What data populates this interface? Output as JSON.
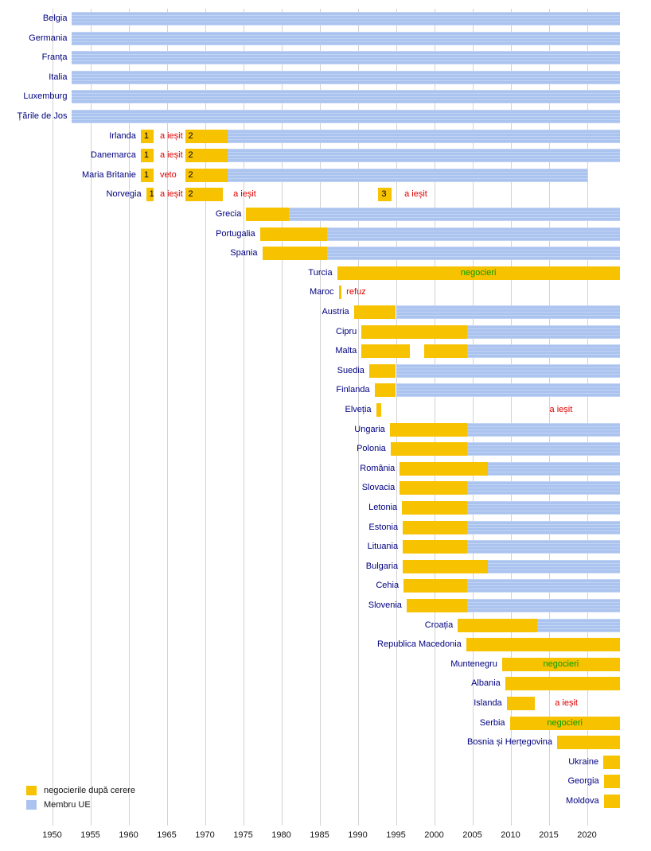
{
  "legend": {
    "application_label": "negocierile după cerere",
    "member_label": "Membru UE"
  },
  "axis": {
    "ticks": [
      "1950",
      "1955",
      "1960",
      "1965",
      "1970",
      "1975",
      "1980",
      "1985",
      "1990",
      "1995",
      "2000",
      "2005",
      "2010",
      "2015",
      "2020"
    ]
  },
  "chart_data": {
    "type": "timeline",
    "x_domain": [
      1950,
      2024.3
    ],
    "x_ticks": [
      1950,
      1955,
      1960,
      1965,
      1970,
      1975,
      1980,
      1985,
      1990,
      1995,
      2000,
      2005,
      2010,
      2015,
      2020
    ],
    "colors": {
      "application": "#F7C200",
      "member": "#ABC3EF",
      "country_label": "#000080",
      "note_negative": "#E10000",
      "note_positive": "#00A000",
      "gridline": "#D2D2D2"
    },
    "legend_position": "bottom-left",
    "grid": true,
    "rows": [
      {
        "label": "Belgia",
        "bars": [
          {
            "type": "member",
            "from": 1952.6,
            "to": 2024.3
          }
        ]
      },
      {
        "label": "Germania",
        "bars": [
          {
            "type": "member",
            "from": 1952.6,
            "to": 2024.3
          }
        ]
      },
      {
        "label": "Franța",
        "bars": [
          {
            "type": "member",
            "from": 1952.6,
            "to": 2024.3
          }
        ]
      },
      {
        "label": "Italia",
        "bars": [
          {
            "type": "member",
            "from": 1952.6,
            "to": 2024.3
          }
        ]
      },
      {
        "label": "Luxemburg",
        "bars": [
          {
            "type": "member",
            "from": 1952.6,
            "to": 2024.3
          }
        ]
      },
      {
        "label": "Țările de Jos",
        "bars": [
          {
            "type": "member",
            "from": 1952.6,
            "to": 2024.3
          }
        ]
      },
      {
        "label": "Irlanda",
        "bars": [
          {
            "type": "application",
            "from": 1961.6,
            "to": 1963.3,
            "text": "1"
          },
          {
            "type": "application",
            "from": 1967.4,
            "to": 1973.0,
            "text": "2"
          },
          {
            "type": "member",
            "from": 1973.0,
            "to": 2024.3
          }
        ],
        "notes": [
          {
            "text": "a ieșit",
            "color": "red",
            "at": 1963.9
          }
        ]
      },
      {
        "label": "Danemarca",
        "bars": [
          {
            "type": "application",
            "from": 1961.6,
            "to": 1963.3,
            "text": "1"
          },
          {
            "type": "application",
            "from": 1967.4,
            "to": 1973.0,
            "text": "2"
          },
          {
            "type": "member",
            "from": 1973.0,
            "to": 2024.3
          }
        ],
        "notes": [
          {
            "text": "a ieșit",
            "color": "red",
            "at": 1963.9
          }
        ]
      },
      {
        "label": "Maria Britanie",
        "bars": [
          {
            "type": "application",
            "from": 1961.6,
            "to": 1963.3,
            "text": "1"
          },
          {
            "type": "application",
            "from": 1967.4,
            "to": 1973.0,
            "text": "2"
          },
          {
            "type": "member",
            "from": 1973.0,
            "to": 2020.1
          }
        ],
        "notes": [
          {
            "text": "veto",
            "color": "red",
            "at": 1963.9
          }
        ]
      },
      {
        "label": "Norvegia",
        "bars": [
          {
            "type": "application",
            "from": 1962.3,
            "to": 1963.3,
            "text": "1"
          },
          {
            "type": "application",
            "from": 1967.4,
            "to": 1972.3,
            "text": "2"
          },
          {
            "type": "application",
            "from": 1992.7,
            "to": 1994.4,
            "text": "3"
          }
        ],
        "notes": [
          {
            "text": "a ieșit",
            "color": "red",
            "at": 1963.9
          },
          {
            "text": "a ieșit",
            "color": "red",
            "at": 1973.5
          },
          {
            "text": "a ieșit",
            "color": "red",
            "at": 1995.9
          }
        ]
      },
      {
        "label": "Grecia",
        "bars": [
          {
            "type": "application",
            "from": 1975.4,
            "to": 1981.0
          },
          {
            "type": "member",
            "from": 1981.0,
            "to": 2024.3
          }
        ]
      },
      {
        "label": "Portugalia",
        "bars": [
          {
            "type": "application",
            "from": 1977.2,
            "to": 1986.0
          },
          {
            "type": "member",
            "from": 1986.0,
            "to": 2024.3
          }
        ]
      },
      {
        "label": "Spania",
        "bars": [
          {
            "type": "application",
            "from": 1977.5,
            "to": 1986.0
          },
          {
            "type": "member",
            "from": 1986.0,
            "to": 2024.3
          }
        ]
      },
      {
        "label": "Turcia",
        "bars": [
          {
            "type": "application",
            "from": 1987.3,
            "to": 2024.3,
            "text": "negocieri",
            "text_color": "green",
            "align": "center"
          }
        ]
      },
      {
        "label": "Maroc",
        "bars": [
          {
            "type": "application",
            "from": 1987.5,
            "to": 1987.9
          }
        ],
        "notes": [
          {
            "text": "refuz",
            "color": "red",
            "at": 1988.3
          }
        ]
      },
      {
        "label": "Austria",
        "bars": [
          {
            "type": "application",
            "from": 1989.5,
            "to": 1995.0
          },
          {
            "type": "member",
            "from": 1995.0,
            "to": 2024.3
          }
        ]
      },
      {
        "label": "Cipru",
        "bars": [
          {
            "type": "application",
            "from": 1990.5,
            "to": 2004.35
          },
          {
            "type": "member",
            "from": 2004.35,
            "to": 2024.3
          }
        ]
      },
      {
        "label": "Malta",
        "bars": [
          {
            "type": "application",
            "from": 1990.5,
            "to": 1996.8
          },
          {
            "type": "application",
            "from": 1998.7,
            "to": 2004.35
          },
          {
            "type": "member",
            "from": 2004.35,
            "to": 2024.3
          }
        ]
      },
      {
        "label": "Suedia",
        "bars": [
          {
            "type": "application",
            "from": 1991.5,
            "to": 1995.0
          },
          {
            "type": "member",
            "from": 1995.0,
            "to": 2024.3
          }
        ]
      },
      {
        "label": "Finlanda",
        "bars": [
          {
            "type": "application",
            "from": 1992.2,
            "to": 1995.0
          },
          {
            "type": "member",
            "from": 1995.0,
            "to": 2024.3
          }
        ]
      },
      {
        "label": "Elveția",
        "bars": [
          {
            "type": "application",
            "from": 1992.4,
            "to": 1993.1
          }
        ],
        "notes": [
          {
            "text": "a ieșit",
            "color": "red",
            "at": 2014.9
          }
        ]
      },
      {
        "label": "Ungaria",
        "bars": [
          {
            "type": "application",
            "from": 1994.2,
            "to": 2004.35
          },
          {
            "type": "member",
            "from": 2004.35,
            "to": 2024.3
          }
        ]
      },
      {
        "label": "Polonia",
        "bars": [
          {
            "type": "application",
            "from": 1994.3,
            "to": 2004.35
          },
          {
            "type": "member",
            "from": 2004.35,
            "to": 2024.3
          }
        ]
      },
      {
        "label": "România",
        "bars": [
          {
            "type": "application",
            "from": 1995.5,
            "to": 2007.0
          },
          {
            "type": "member",
            "from": 2007.0,
            "to": 2024.3
          }
        ]
      },
      {
        "label": "Slovacia",
        "bars": [
          {
            "type": "application",
            "from": 1995.5,
            "to": 2004.35
          },
          {
            "type": "member",
            "from": 2004.35,
            "to": 2024.3
          }
        ]
      },
      {
        "label": "Letonia",
        "bars": [
          {
            "type": "application",
            "from": 1995.8,
            "to": 2004.35
          },
          {
            "type": "member",
            "from": 2004.35,
            "to": 2024.3
          }
        ]
      },
      {
        "label": "Estonia",
        "bars": [
          {
            "type": "application",
            "from": 1995.9,
            "to": 2004.35
          },
          {
            "type": "member",
            "from": 2004.35,
            "to": 2024.3
          }
        ]
      },
      {
        "label": "Lituania",
        "bars": [
          {
            "type": "application",
            "from": 1995.9,
            "to": 2004.35
          },
          {
            "type": "member",
            "from": 2004.35,
            "to": 2024.3
          }
        ]
      },
      {
        "label": "Bulgaria",
        "bars": [
          {
            "type": "application",
            "from": 1995.9,
            "to": 2007.0
          },
          {
            "type": "member",
            "from": 2007.0,
            "to": 2024.3
          }
        ]
      },
      {
        "label": "Cehia",
        "bars": [
          {
            "type": "application",
            "from": 1996.0,
            "to": 2004.35
          },
          {
            "type": "member",
            "from": 2004.35,
            "to": 2024.3
          }
        ]
      },
      {
        "label": "Slovenia",
        "bars": [
          {
            "type": "application",
            "from": 1996.4,
            "to": 2004.35
          },
          {
            "type": "member",
            "from": 2004.35,
            "to": 2024.3
          }
        ]
      },
      {
        "label": "Croația",
        "bars": [
          {
            "type": "application",
            "from": 2003.1,
            "to": 2013.5
          },
          {
            "type": "member",
            "from": 2013.5,
            "to": 2024.3
          }
        ]
      },
      {
        "label": "Republica Macedonia",
        "bars": [
          {
            "type": "application",
            "from": 2004.2,
            "to": 2024.3
          }
        ]
      },
      {
        "label": "Muntenegru",
        "bars": [
          {
            "type": "application",
            "from": 2008.9,
            "to": 2024.3,
            "text": "negocieri",
            "text_color": "green",
            "align": "center"
          }
        ]
      },
      {
        "label": "Albania",
        "bars": [
          {
            "type": "application",
            "from": 2009.3,
            "to": 2024.3
          }
        ]
      },
      {
        "label": "Islanda",
        "bars": [
          {
            "type": "application",
            "from": 2009.5,
            "to": 2013.2
          }
        ],
        "notes": [
          {
            "text": "a ieșit",
            "color": "red",
            "at": 2015.6
          }
        ]
      },
      {
        "label": "Serbia",
        "bars": [
          {
            "type": "application",
            "from": 2009.9,
            "to": 2024.3,
            "text": "negocieri",
            "text_color": "green",
            "align": "center"
          }
        ]
      },
      {
        "label": "Bosnia și Herțegovina",
        "bars": [
          {
            "type": "application",
            "from": 2016.1,
            "to": 2024.3
          }
        ]
      },
      {
        "label": "Ukraine",
        "bars": [
          {
            "type": "application",
            "from": 2022.15,
            "to": 2024.3
          }
        ]
      },
      {
        "label": "Georgia",
        "bars": [
          {
            "type": "application",
            "from": 2022.2,
            "to": 2024.3
          }
        ]
      },
      {
        "label": "Moldova",
        "bars": [
          {
            "type": "application",
            "from": 2022.2,
            "to": 2024.3
          }
        ]
      }
    ]
  }
}
